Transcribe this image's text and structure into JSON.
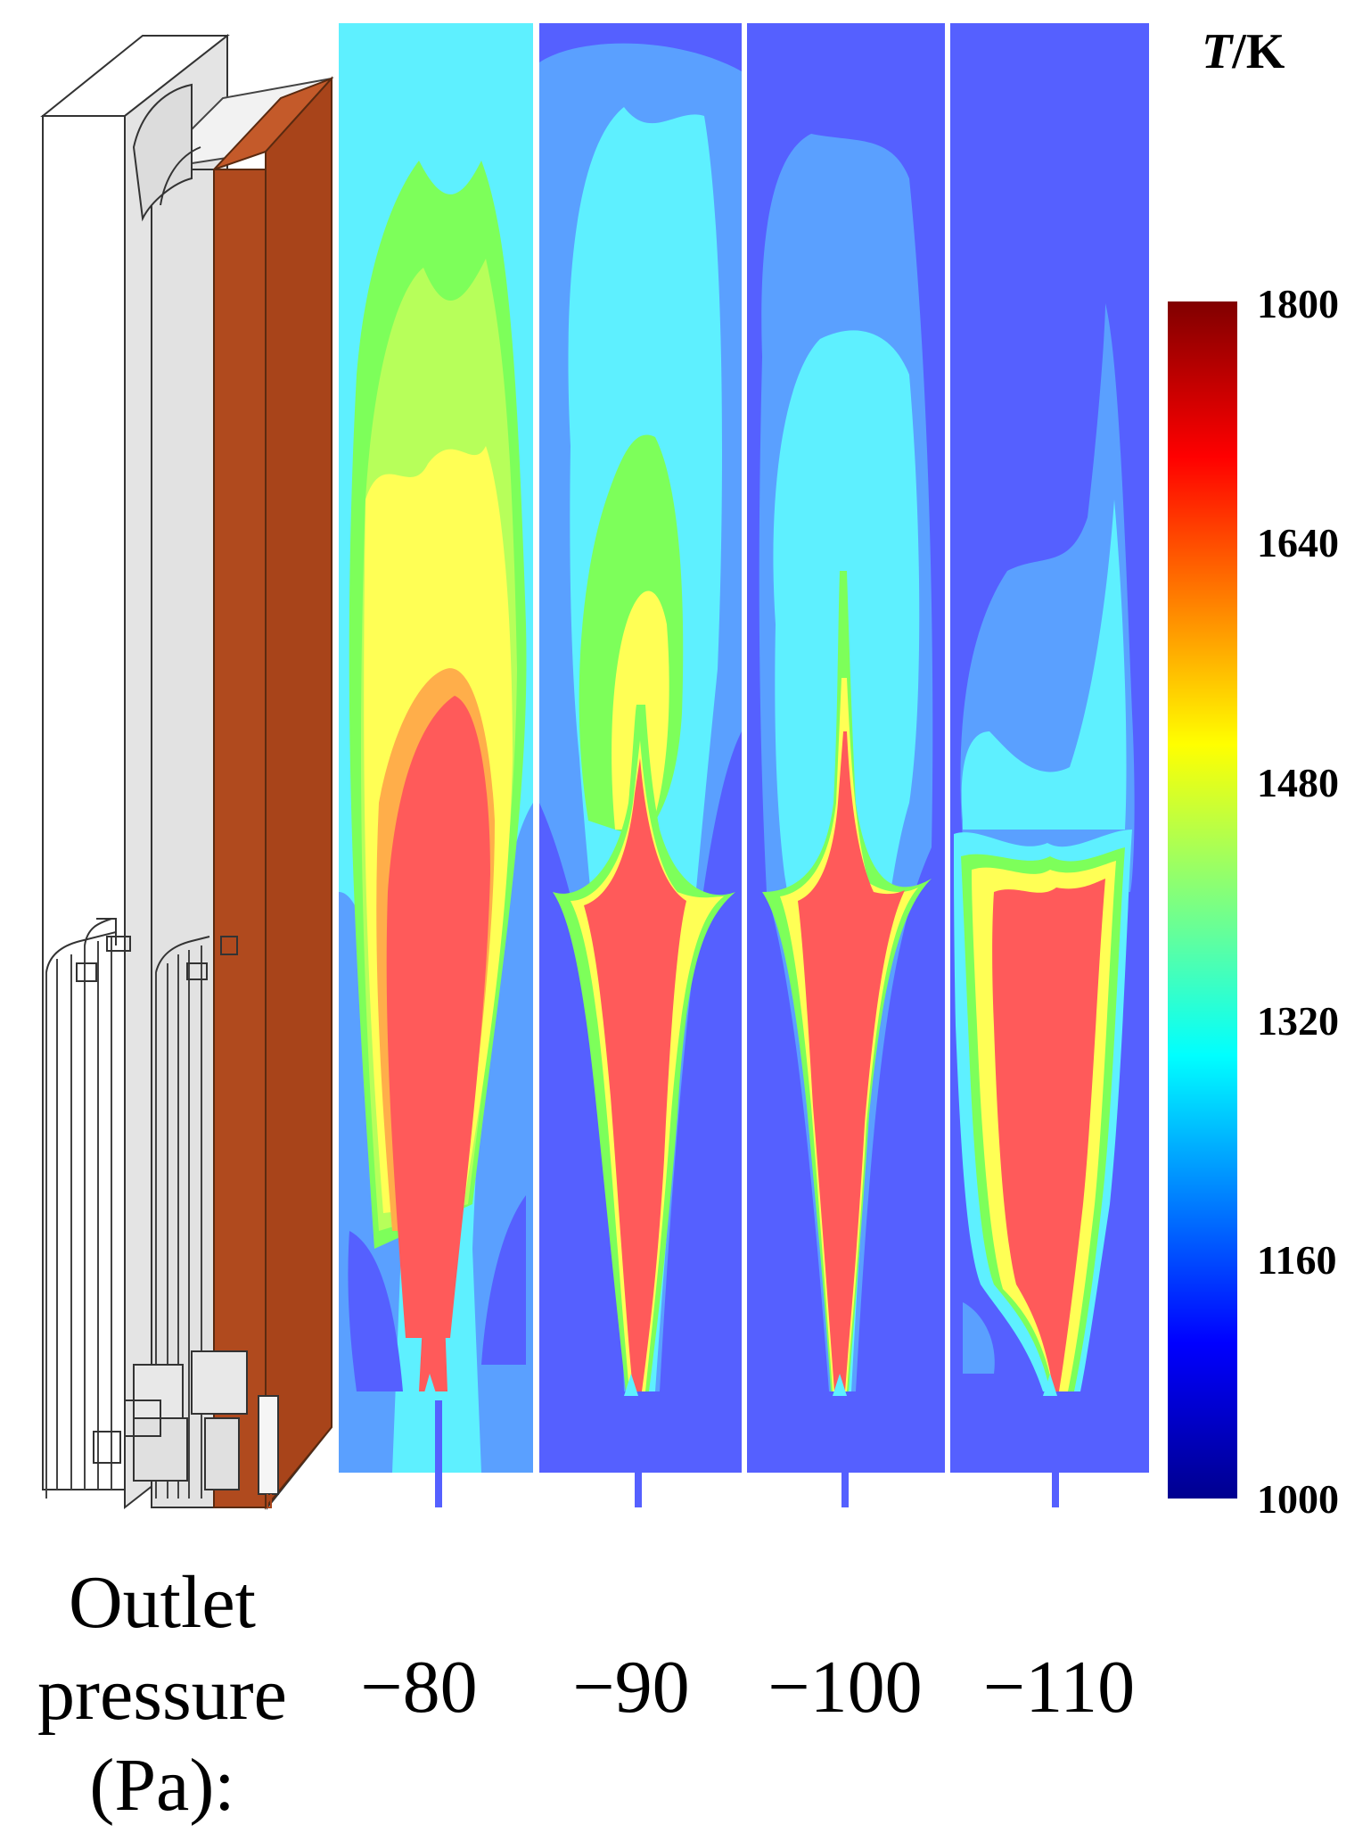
{
  "colorbar": {
    "symbol": "T",
    "unit": "K",
    "ticks": [
      "1800",
      "1640",
      "1480",
      "1320",
      "1160",
      "1000"
    ]
  },
  "caption": {
    "line1": "Outlet",
    "line2": "pressure",
    "line3": "(Pa):"
  },
  "cases": [
    {
      "label": "−80"
    },
    {
      "label": "−90"
    },
    {
      "label": "−100"
    },
    {
      "label": "−110"
    }
  ],
  "colors": {
    "background_field": "#5560ff",
    "cyan": "#5ef0ff",
    "light_blue": "#5aa0ff",
    "green": "#7dff5a",
    "yellow": "#ffff55",
    "orange": "#ffae4a",
    "red": "#ff5a5a",
    "wall": "#b04a1e"
  }
}
